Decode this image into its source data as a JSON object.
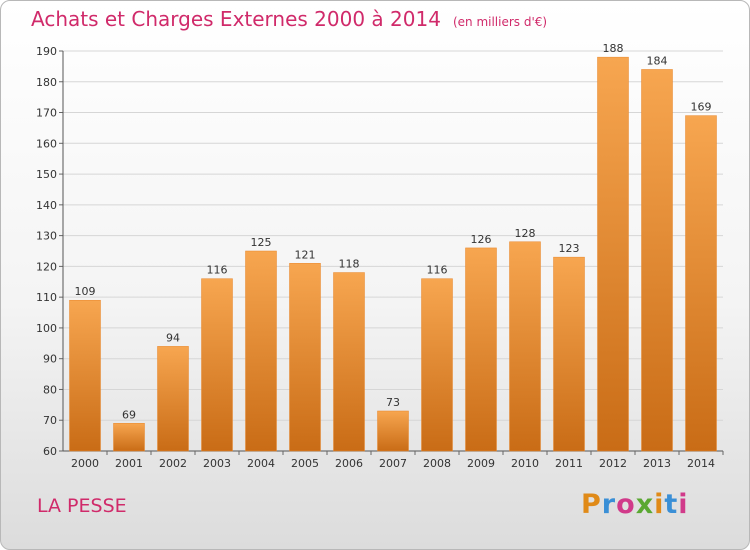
{
  "title": {
    "main": "Achats et Charges Externes 2000 à 2014",
    "unit": "(en milliers d'€)"
  },
  "place": "LA PESSE",
  "logo": {
    "text": "Proxiti",
    "letters": [
      {
        "ch": "P",
        "color": "#e08a18"
      },
      {
        "ch": "r",
        "color": "#3a8fd6"
      },
      {
        "ch": "o",
        "color": "#d13a8a"
      },
      {
        "ch": "x",
        "color": "#5aa832"
      },
      {
        "ch": "i",
        "color": "#e08a18"
      },
      {
        "ch": "t",
        "color": "#3a8fd6"
      },
      {
        "ch": "i",
        "color": "#d13a8a"
      }
    ]
  },
  "chart_data": {
    "type": "bar",
    "title": "Achats et Charges Externes 2000 à 2014",
    "subtitle": "(en milliers d'€)",
    "xlabel": "",
    "ylabel": "",
    "categories": [
      "2000",
      "2001",
      "2002",
      "2003",
      "2004",
      "2005",
      "2006",
      "2007",
      "2008",
      "2009",
      "2010",
      "2011",
      "2012",
      "2013",
      "2014"
    ],
    "values": [
      109,
      69,
      94,
      116,
      125,
      121,
      118,
      73,
      116,
      126,
      128,
      123,
      188,
      184,
      169
    ],
    "ylim": [
      60,
      190
    ],
    "yticks": [
      60,
      70,
      80,
      90,
      100,
      110,
      120,
      130,
      140,
      150,
      160,
      170,
      180,
      190
    ],
    "grid": true,
    "legend": "none",
    "bar_color": "#f0963c"
  }
}
